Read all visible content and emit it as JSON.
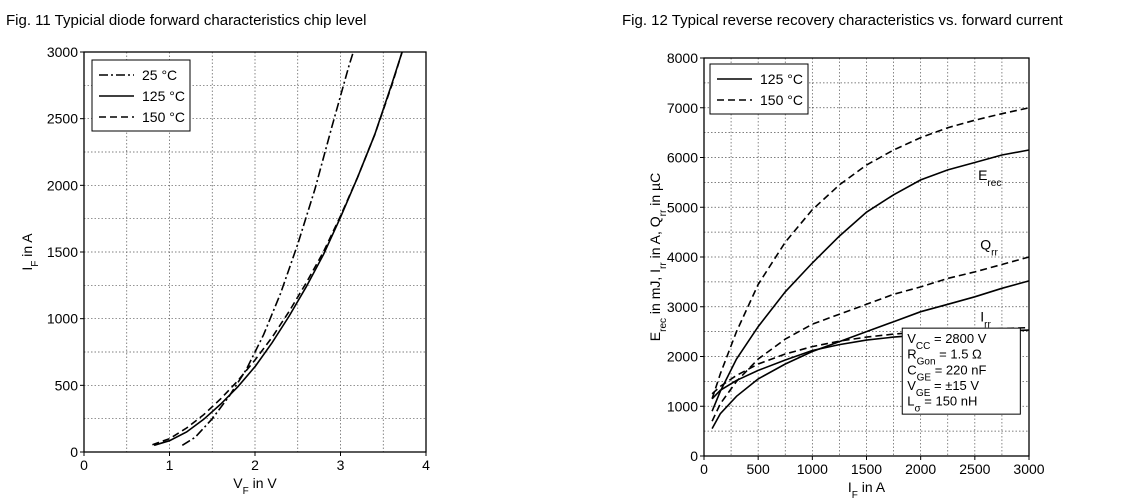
{
  "chart_data": [
    {
      "type": "line",
      "title": "Fig. 11  Typicial diode forward characteristics chip level",
      "xlabel": "V_F in V",
      "ylabel": "I_F in A",
      "xlim": [
        0,
        4
      ],
      "ylim": [
        0,
        3000
      ],
      "xticks": [
        "0",
        "1",
        "2",
        "3",
        "4"
      ],
      "yticks": [
        "0",
        "500",
        "1000",
        "1500",
        "2000",
        "2500",
        "3000"
      ],
      "grid": true,
      "legend_position": "top-left",
      "series": [
        {
          "name": "25 °C",
          "dash": "dashdot",
          "x": [
            1.15,
            1.3,
            1.5,
            1.7,
            1.9,
            2.1,
            2.3,
            2.5,
            2.7,
            2.9,
            3.1,
            3.15
          ],
          "y": [
            50,
            110,
            250,
            420,
            620,
            880,
            1190,
            1560,
            1970,
            2440,
            2900,
            3000
          ]
        },
        {
          "name": "125 °C",
          "dash": "solid",
          "x": [
            0.82,
            1.0,
            1.2,
            1.4,
            1.6,
            1.8,
            2.0,
            2.2,
            2.4,
            2.6,
            2.8,
            3.0,
            3.2,
            3.4,
            3.6,
            3.72
          ],
          "y": [
            50,
            85,
            150,
            245,
            360,
            490,
            640,
            820,
            1020,
            1240,
            1480,
            1760,
            2060,
            2380,
            2760,
            3000
          ]
        },
        {
          "name": "150 °C",
          "dash": "dashed",
          "x": [
            0.8,
            1.0,
            1.2,
            1.4,
            1.6,
            1.8,
            2.0,
            2.2,
            2.4,
            2.6,
            2.8,
            3.0,
            3.2,
            3.4,
            3.6,
            3.72
          ],
          "y": [
            55,
            100,
            180,
            280,
            400,
            535,
            690,
            860,
            1055,
            1270,
            1500,
            1770,
            2060,
            2380,
            2750,
            3000
          ]
        }
      ]
    },
    {
      "type": "line",
      "title": "Fig. 12  Typical reverse recovery characteristics vs. forward current",
      "xlabel": "I_F in A",
      "ylabel": "E_rec in mJ, I_rr in A, Q_rr in µC",
      "xlim": [
        0,
        3000
      ],
      "ylim": [
        0,
        8000
      ],
      "xticks": [
        "0",
        "500",
        "1000",
        "1500",
        "2000",
        "2500",
        "3000"
      ],
      "yticks": [
        "0",
        "1000",
        "2000",
        "3000",
        "4000",
        "5000",
        "6000",
        "7000",
        "8000"
      ],
      "grid": true,
      "legend_position": "top-left",
      "curve_labels": [
        "E_rec",
        "Q_rr",
        "I_rr"
      ],
      "parameters": [
        "V_CC = 2800 V",
        "R_Gon = 1.5 Ω",
        "C_GE = 220 nF",
        "V_GE = ±15 V",
        "L_σ = 150 nH"
      ],
      "series": [
        {
          "name": "125 °C",
          "quantity": "E_rec",
          "dash": "solid",
          "x": [
            75,
            150,
            300,
            500,
            750,
            1000,
            1250,
            1500,
            1750,
            2000,
            2250,
            2500,
            2750,
            3000
          ],
          "y": [
            900,
            1300,
            1950,
            2600,
            3300,
            3880,
            4420,
            4900,
            5250,
            5550,
            5750,
            5900,
            6050,
            6150
          ]
        },
        {
          "name": "150 °C",
          "quantity": "E_rec",
          "dash": "dashed",
          "x": [
            75,
            150,
            300,
            500,
            750,
            1000,
            1250,
            1500,
            1750,
            2000,
            2250,
            2500,
            2750,
            3000
          ],
          "y": [
            1150,
            1650,
            2500,
            3450,
            4300,
            4950,
            5450,
            5850,
            6150,
            6400,
            6600,
            6750,
            6880,
            7000
          ]
        },
        {
          "name": "125 °C",
          "quantity": "Q_rr",
          "dash": "solid",
          "x": [
            75,
            150,
            300,
            500,
            750,
            1000,
            1250,
            1500,
            1750,
            2000,
            2250,
            2500,
            2750,
            3000
          ],
          "y": [
            550,
            850,
            1200,
            1550,
            1850,
            2100,
            2300,
            2500,
            2700,
            2900,
            3050,
            3200,
            3370,
            3520
          ]
        },
        {
          "name": "150 °C",
          "quantity": "Q_rr",
          "dash": "dashed",
          "x": [
            75,
            150,
            300,
            500,
            750,
            1000,
            1250,
            1500,
            1750,
            2000,
            2250,
            2500,
            2750,
            3000
          ],
          "y": [
            700,
            1050,
            1500,
            1950,
            2350,
            2650,
            2850,
            3050,
            3250,
            3400,
            3570,
            3700,
            3850,
            4000
          ]
        },
        {
          "name": "125 °C",
          "quantity": "I_rr",
          "dash": "solid",
          "x": [
            75,
            150,
            300,
            500,
            750,
            1000,
            1250,
            1500,
            1750,
            2000,
            2250,
            2500,
            2750,
            3000
          ],
          "y": [
            1150,
            1320,
            1520,
            1720,
            1930,
            2120,
            2240,
            2330,
            2390,
            2430,
            2460,
            2490,
            2510,
            2530
          ]
        },
        {
          "name": "150 °C",
          "quantity": "I_rr",
          "dash": "dashed",
          "x": [
            75,
            150,
            300,
            500,
            750,
            1000,
            1250,
            1500,
            1750,
            2000,
            2250,
            2500,
            2750,
            3000
          ],
          "y": [
            1250,
            1400,
            1620,
            1850,
            2050,
            2200,
            2310,
            2390,
            2450,
            2490,
            2520,
            2540,
            2560,
            2580
          ]
        }
      ]
    }
  ]
}
